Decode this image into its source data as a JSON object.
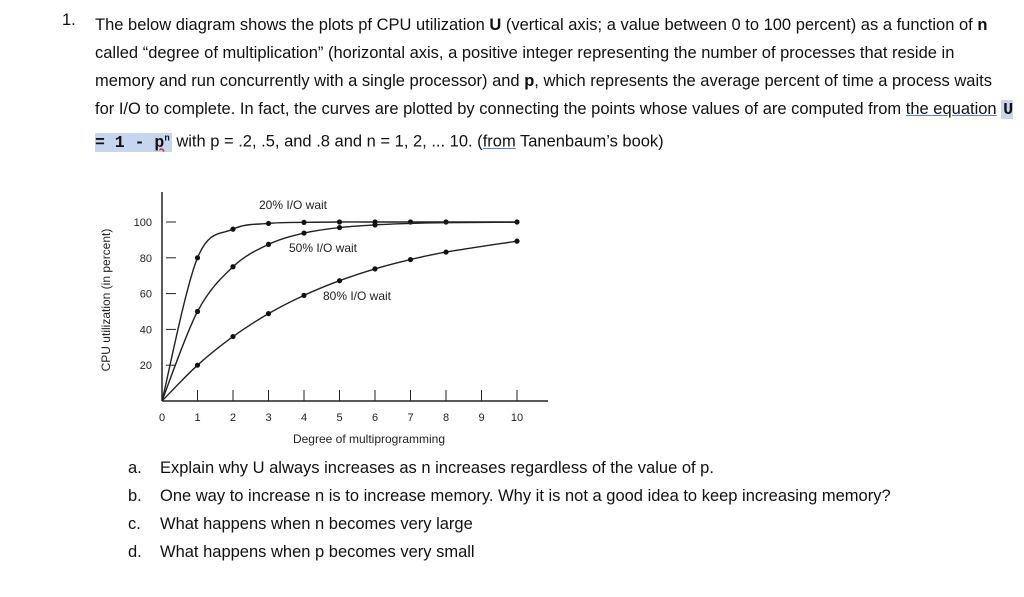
{
  "question": {
    "number": "1.",
    "text_1": "The below diagram shows the plots pf CPU utilization ",
    "bold_U": "U",
    "text_2": " (vertical axis; a value between 0 to 100 percent) as a function of ",
    "bold_n": "n",
    "text_3": " called “degree of multiplication” (horizontal axis, a positive integer representing the number of processes that reside in memory and run concurrently with a single processor) and ",
    "bold_p": "p",
    "text_4": ", which represents the average percent of time a process waits for I/O to complete. In fact, the curves are plotted by connecting the points whose values of are computed from ",
    "link_text": "the  equation",
    "equation_main": "U = 1 - ",
    "equation_p": "p",
    "equation_sup": "n",
    "text_5": " with p = .2, .5, and .8 and n = 1, 2, ... 10. (",
    "from_word": "from",
    "text_6": " Tanenbaum’s book)"
  },
  "subquestions": [
    {
      "label": "a.",
      "text": "Explain why U always increases as n increases regardless of the value of p."
    },
    {
      "label": "b.",
      "text": "One way to increase n is to increase memory. Why it is not a good idea to keep increasing memory?"
    },
    {
      "label": "c.",
      "text": "What happens when n becomes very large"
    },
    {
      "label": "d.",
      "text": "What happens when p becomes very small"
    }
  ],
  "chart_data": {
    "type": "line",
    "xlabel": "Degree of multiprogramming",
    "ylabel": "CPU utilization (in percent)",
    "xlim": [
      0,
      10
    ],
    "ylim": [
      0,
      100
    ],
    "xticks": [
      "0",
      "1",
      "2",
      "3",
      "4",
      "5",
      "6",
      "7",
      "8",
      "9",
      "10"
    ],
    "yticks": [
      "20",
      "40",
      "60",
      "80",
      "100"
    ],
    "grid": false,
    "series": [
      {
        "name": "20% I/O wait",
        "x": [
          0,
          1,
          2,
          3,
          4,
          5,
          6,
          7,
          8,
          10
        ],
        "y": [
          0,
          80,
          96,
          99.2,
          99.8,
          100,
          100,
          100,
          100,
          100
        ]
      },
      {
        "name": "50% I/O wait",
        "x": [
          0,
          1,
          2,
          3,
          4,
          5,
          6,
          7,
          8,
          10
        ],
        "y": [
          0,
          50,
          75,
          87.5,
          93.8,
          96.9,
          98.4,
          99.2,
          99.6,
          99.9
        ],
        "markers": [
          1,
          2,
          3,
          4,
          5,
          6
        ]
      },
      {
        "name": "80% I/O wait",
        "x": [
          0,
          1,
          2,
          3,
          4,
          5,
          6,
          7,
          8,
          10
        ],
        "y": [
          0,
          20,
          36,
          48.8,
          59,
          67.2,
          73.8,
          79,
          83.2,
          89.3
        ]
      }
    ]
  }
}
